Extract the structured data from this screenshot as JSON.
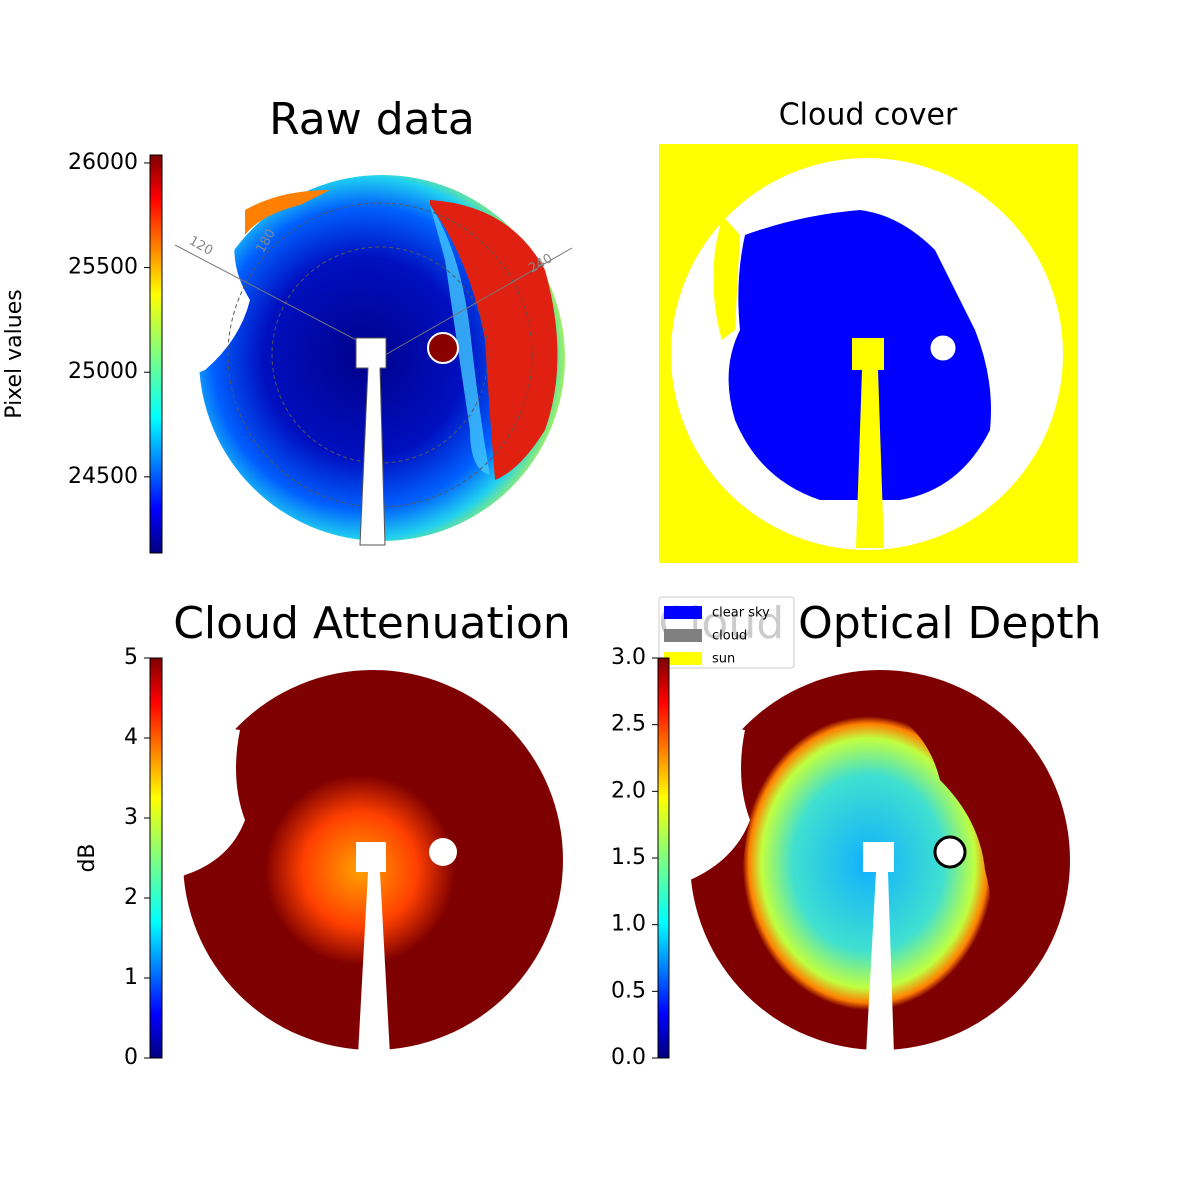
{
  "chart_data": [
    {
      "type": "image",
      "title": "Raw data",
      "annotations": [
        "120",
        "180",
        "240"
      ],
      "colorbar": {
        "label": "Pixel values",
        "ylim": [
          24136,
          26038
        ],
        "yticks": [
          24500,
          25000,
          25500,
          26000
        ]
      }
    },
    {
      "type": "image",
      "title": "Cloud cover",
      "legend": [
        {
          "name": "clear sky",
          "color": "#0000ff"
        },
        {
          "name": "cloud",
          "color": "#808080"
        },
        {
          "name": "sun",
          "color": "#ffff00"
        }
      ]
    },
    {
      "type": "image",
      "title": "Cloud Attenuation",
      "colorbar": {
        "label": "dB",
        "ylim": [
          0,
          5
        ],
        "yticks": [
          0,
          1,
          2,
          3,
          4,
          5
        ]
      }
    },
    {
      "type": "image",
      "title": "Cloud Optical Depth",
      "colorbar": {
        "ylim": [
          0,
          3
        ],
        "yticks": [
          {
            "value": 0,
            "label": "0.0"
          },
          {
            "value": 0.5,
            "label": "0.5"
          },
          {
            "value": 1,
            "label": "1.0"
          },
          {
            "value": 1.5,
            "label": "1.5"
          },
          {
            "value": 2,
            "label": "2.0"
          },
          {
            "value": 2.5,
            "label": "2.5"
          },
          {
            "value": 3,
            "label": "3.0"
          }
        ]
      }
    }
  ]
}
